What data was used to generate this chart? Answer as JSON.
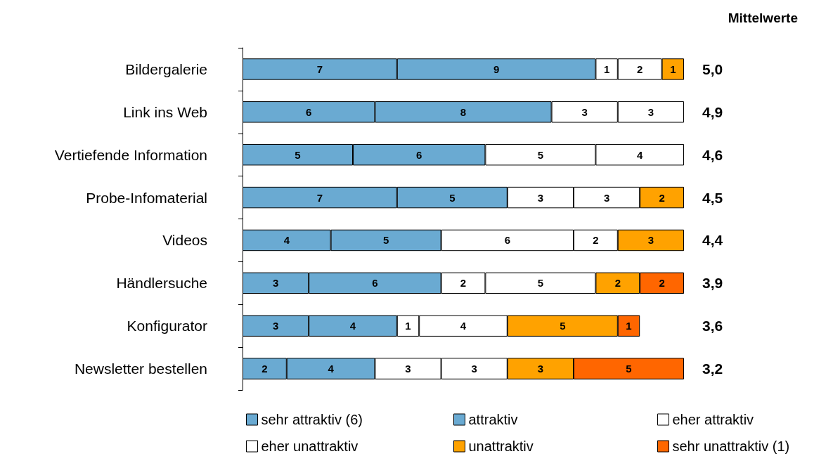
{
  "chart_data": {
    "type": "bar",
    "orientation": "horizontal",
    "stacked": true,
    "data_labels": true,
    "legend": "bottom",
    "categories": [
      "Bildergalerie",
      "Link ins Web",
      "Vertiefende Information",
      "Probe-Infomaterial",
      "Videos",
      "Händlersuche",
      "Konfigurator",
      "Newsletter bestellen"
    ],
    "series": [
      {
        "name": "sehr attraktiv (6)",
        "color": "#6aaad2",
        "values": [
          7,
          6,
          5,
          7,
          4,
          3,
          3,
          2
        ]
      },
      {
        "name": "attraktiv",
        "color": "#6aaad2",
        "values": [
          9,
          8,
          6,
          5,
          5,
          6,
          4,
          4
        ]
      },
      {
        "name": "eher attraktiv",
        "color": "#ffffff",
        "values": [
          1,
          3,
          5,
          3,
          6,
          2,
          1,
          3
        ]
      },
      {
        "name": "eher unattraktiv",
        "color": "#ffffff",
        "values": [
          2,
          3,
          4,
          3,
          2,
          5,
          4,
          3
        ]
      },
      {
        "name": "unattraktiv",
        "color": "#ffa200",
        "values": [
          1,
          null,
          null,
          2,
          3,
          2,
          5,
          3
        ]
      },
      {
        "name": "sehr unattraktiv (1)",
        "color": "#ff6600",
        "values": [
          null,
          null,
          null,
          null,
          null,
          2,
          1,
          5
        ]
      }
    ],
    "annotations": [
      "Mittelwerte",
      "5,0",
      "4,9",
      "4,6",
      "4,5",
      "4,4",
      "3,9",
      "3,6",
      "3,2"
    ]
  }
}
